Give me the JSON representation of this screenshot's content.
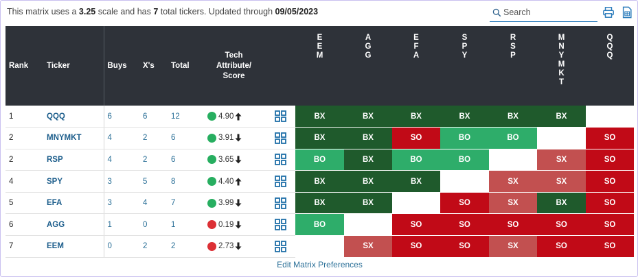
{
  "info": {
    "prefix": "This matrix uses a ",
    "scale": "3.25",
    "mid": " scale and has ",
    "count": "7",
    "mid2": " total tickers. Updated through ",
    "date": "09/05/2023"
  },
  "search": {
    "placeholder": "Search"
  },
  "headers": {
    "rank": "Rank",
    "ticker": "Ticker",
    "buys": "Buys",
    "xs": "X's",
    "total": "Total",
    "tech": [
      "Tech",
      "Attribute/",
      "Score"
    ]
  },
  "columns": [
    [
      "E",
      "E",
      "M"
    ],
    [
      "A",
      "G",
      "G"
    ],
    [
      "E",
      "F",
      "A"
    ],
    [
      "S",
      "P",
      "Y"
    ],
    [
      "R",
      "S",
      "P"
    ],
    [
      "M",
      "N",
      "Y",
      "M",
      "K",
      "T"
    ],
    [
      "Q",
      "Q",
      "Q"
    ]
  ],
  "colors": {
    "dark_green": "#1f5a2c",
    "green": "#2ead6a",
    "red": "#c10a17",
    "light_red": "#c25050",
    "white": "#ffffff",
    "header_bg": "#2e3239"
  },
  "rows": [
    {
      "rank": "1",
      "ticker": "QQQ",
      "buys": "6",
      "xs": "6",
      "total": "12",
      "dot": "green",
      "score": "4.90",
      "trend": "up",
      "cells": [
        "BX",
        "BX",
        "BX",
        "BX",
        "BX",
        "BX",
        ""
      ],
      "colors": [
        "dark_green",
        "dark_green",
        "dark_green",
        "dark_green",
        "dark_green",
        "dark_green",
        "white"
      ]
    },
    {
      "rank": "2",
      "ticker": "MNYMKT",
      "buys": "4",
      "xs": "2",
      "total": "6",
      "dot": "green",
      "score": "3.91",
      "trend": "down",
      "cells": [
        "BX",
        "BX",
        "SO",
        "BO",
        "BO",
        "",
        "SO"
      ],
      "colors": [
        "dark_green",
        "dark_green",
        "red",
        "green",
        "green",
        "white",
        "red"
      ]
    },
    {
      "rank": "2",
      "ticker": "RSP",
      "buys": "4",
      "xs": "2",
      "total": "6",
      "dot": "green",
      "score": "3.65",
      "trend": "down",
      "cells": [
        "BO",
        "BX",
        "BO",
        "BO",
        "",
        "SX",
        "SO"
      ],
      "colors": [
        "green",
        "dark_green",
        "green",
        "green",
        "white",
        "light_red",
        "red"
      ]
    },
    {
      "rank": "4",
      "ticker": "SPY",
      "buys": "3",
      "xs": "5",
      "total": "8",
      "dot": "green",
      "score": "4.40",
      "trend": "up",
      "cells": [
        "BX",
        "BX",
        "BX",
        "",
        "SX",
        "SX",
        "SO"
      ],
      "colors": [
        "dark_green",
        "dark_green",
        "dark_green",
        "white",
        "light_red",
        "light_red",
        "red"
      ]
    },
    {
      "rank": "5",
      "ticker": "EFA",
      "buys": "3",
      "xs": "4",
      "total": "7",
      "dot": "green",
      "score": "3.99",
      "trend": "down",
      "cells": [
        "BX",
        "BX",
        "",
        "SO",
        "SX",
        "BX",
        "SO"
      ],
      "colors": [
        "dark_green",
        "dark_green",
        "white",
        "red",
        "light_red",
        "dark_green",
        "red"
      ]
    },
    {
      "rank": "6",
      "ticker": "AGG",
      "buys": "1",
      "xs": "0",
      "total": "1",
      "dot": "red",
      "score": "0.19",
      "trend": "down",
      "cells": [
        "BO",
        "",
        "SO",
        "SO",
        "SO",
        "SO",
        "SO"
      ],
      "colors": [
        "green",
        "white",
        "red",
        "red",
        "red",
        "red",
        "red"
      ]
    },
    {
      "rank": "7",
      "ticker": "EEM",
      "buys": "0",
      "xs": "2",
      "total": "2",
      "dot": "red",
      "score": "2.73",
      "trend": "down",
      "cells": [
        "",
        "SX",
        "SO",
        "SO",
        "SX",
        "SO",
        "SO"
      ],
      "colors": [
        "white",
        "light_red",
        "red",
        "red",
        "light_red",
        "red",
        "red"
      ]
    }
  ],
  "footer": {
    "link": "Edit Matrix Preferences"
  }
}
